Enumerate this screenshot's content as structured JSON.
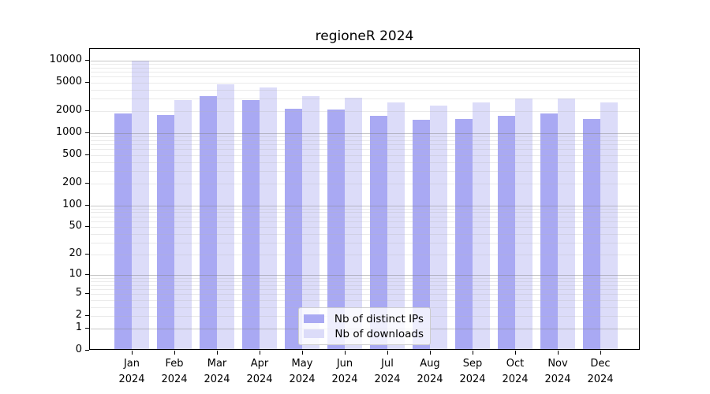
{
  "title": "regioneR 2024",
  "colors": {
    "ips_bar": "#a9a9f3",
    "downloads_bar": "#dcdcf9",
    "axis": "#000000",
    "legend_border": "#cccccc"
  },
  "legend": {
    "position": "lower center",
    "items": [
      {
        "key": "ips",
        "label": "Nb of distinct IPs"
      },
      {
        "key": "downloads",
        "label": "Nb of downloads"
      }
    ]
  },
  "chart_data": {
    "type": "bar",
    "title": "regioneR 2024",
    "xlabel": "",
    "ylabel": "",
    "yscale": "log1p",
    "ylim": [
      0,
      14500
    ],
    "grid": true,
    "legend_position": "lower center",
    "y_ticks": [
      0,
      1,
      2,
      5,
      10,
      20,
      50,
      100,
      200,
      500,
      1000,
      2000,
      5000,
      10000
    ],
    "categories": [
      "Jan 2024",
      "Feb 2024",
      "Mar 2024",
      "Apr 2024",
      "May 2024",
      "Jun 2024",
      "Jul 2024",
      "Aug 2024",
      "Sep 2024",
      "Oct 2024",
      "Nov 2024",
      "Dec 2024"
    ],
    "series": [
      {
        "key": "ips",
        "name": "Nb of distinct IPs",
        "color": "#a9a9f3",
        "values": [
          1800,
          1700,
          3050,
          2750,
          2050,
          2000,
          1650,
          1450,
          1500,
          1650,
          1800,
          1500
        ]
      },
      {
        "key": "downloads",
        "name": "Nb of downloads",
        "color": "#dcdcf9",
        "values": [
          9500,
          2700,
          4450,
          4100,
          3100,
          2900,
          2550,
          2300,
          2500,
          2850,
          2850,
          2500
        ]
      }
    ]
  }
}
